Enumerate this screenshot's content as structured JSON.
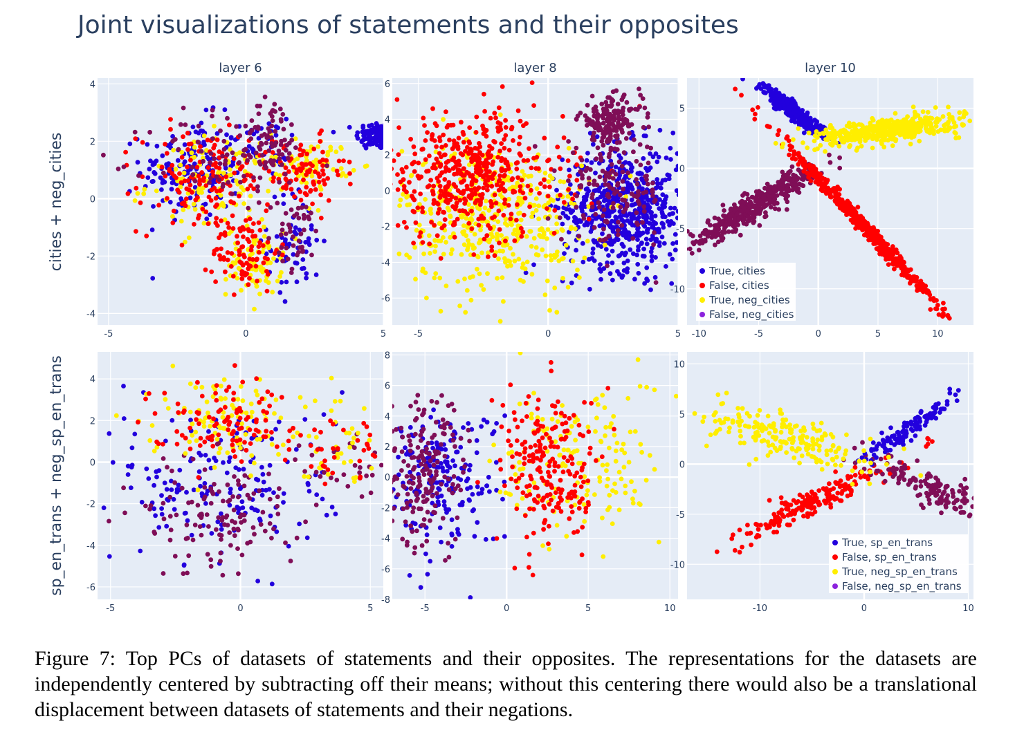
{
  "title": "Joint visualizations of statements and their opposites",
  "caption": "Figure 7: Top PCs of datasets of statements and their opposites. The representations for the datasets are independently centered by subtracting off their means; without this centering there would also be a translational displacement between datasets of statements and their negations.",
  "colors": {
    "plot_bg": "#e5ecf6",
    "grid": "#ffffff",
    "true": "#2200dd",
    "false": "#ff0000",
    "neg_true": "#ffee00",
    "neg_false": "#7f0e57",
    "legend_false_neg": "#8b22dd"
  },
  "chart_data": [
    {
      "type": "scatter",
      "title": "layer 6",
      "ylabel": "cities + neg_cities",
      "xlim": [
        -5.4,
        5
      ],
      "ylim": [
        -4.4,
        4.2
      ],
      "xticks": [
        "-5",
        "0",
        "5"
      ],
      "yticks": [
        "4",
        "2",
        "0",
        "-2",
        "-4"
      ],
      "series": [
        {
          "clusters": [
            [
              4.8,
              2.2,
              0.4,
              0.25,
              0.0,
              120
            ],
            [
              -2.0,
              1.0,
              0.9,
              0.9,
              0.0,
              160
            ],
            [
              1.8,
              -1.5,
              0.5,
              0.9,
              0.0,
              60
            ],
            [
              0.5,
              1.8,
              0.5,
              0.5,
              0.0,
              40
            ]
          ]
        },
        {
          "clusters": [
            [
              -1.5,
              0.6,
              1.2,
              0.9,
              0.0,
              140
            ],
            [
              2.0,
              0.9,
              0.8,
              0.6,
              0.0,
              90
            ],
            [
              0.0,
              -1.8,
              0.6,
              0.7,
              0.0,
              90
            ]
          ]
        },
        {
          "clusters": [
            [
              -1.0,
              0.5,
              1.3,
              0.8,
              0.0,
              120
            ],
            [
              0.3,
              -2.2,
              0.5,
              0.6,
              0.0,
              80
            ],
            [
              2.6,
              1.2,
              0.6,
              0.4,
              0.0,
              60
            ]
          ]
        },
        {
          "clusters": [
            [
              -0.5,
              1.3,
              1.5,
              0.9,
              0.0,
              90
            ],
            [
              1.0,
              2.3,
              0.5,
              0.6,
              0.0,
              50
            ],
            [
              1.9,
              -1.3,
              0.4,
              0.6,
              0.0,
              40
            ]
          ]
        }
      ]
    },
    {
      "type": "scatter",
      "title": "layer 8",
      "xlim": [
        -6,
        5
      ],
      "ylim": [
        -7.5,
        6.3
      ],
      "xticks": [
        "-5",
        "0",
        "5"
      ],
      "yticks": [
        "6",
        "4",
        "2",
        "0",
        "-2",
        "-4",
        "-6"
      ],
      "series": [
        {
          "clusters": [
            [
              3.0,
              -1.0,
              1.2,
              1.7,
              0.0,
              600
            ]
          ]
        },
        {
          "clusters": [
            [
              -3.0,
              0.8,
              1.8,
              1.8,
              0.0,
              500
            ]
          ]
        },
        {
          "clusters": [
            [
              -2.0,
              -1.5,
              1.8,
              2.0,
              0.0,
              450
            ]
          ]
        },
        {
          "clusters": [
            [
              2.4,
              4.0,
              0.6,
              0.6,
              0.0,
              160
            ],
            [
              2.5,
              0.0,
              1.0,
              1.5,
              0.0,
              150
            ]
          ]
        }
      ]
    },
    {
      "type": "scatter",
      "xlim": [
        -11,
        13
      ],
      "ylim": [
        -13,
        7.5
      ],
      "xticks": [
        "-10",
        "-5",
        "0",
        "5",
        "10"
      ],
      "yticks": [
        "5",
        "0",
        "-5",
        "-10"
      ],
      "title": "layer 10",
      "legend": [
        {
          "label": "True,  cities",
          "color": "#2200dd"
        },
        {
          "label": "False, cities",
          "color": "#ff0000"
        },
        {
          "label": "True,  neg_cities",
          "color": "#ffee00"
        },
        {
          "label": "False, neg_cities",
          "color": "#8b22dd"
        }
      ],
      "series": [
        {
          "clusters": [
            [
              -2.0,
              4.7,
              1.2,
              0.35,
              -0.75,
              400
            ]
          ]
        },
        {
          "clusters": [
            [
              3.8,
              -4.8,
              3.5,
              0.35,
              -1.05,
              500
            ]
          ]
        },
        {
          "clusters": [
            [
              5.8,
              3.2,
              3.0,
              0.5,
              0.12,
              450
            ]
          ]
        },
        {
          "clusters": [
            [
              -5.5,
              -3.2,
              2.8,
              0.55,
              0.6,
              450
            ]
          ]
        }
      ]
    },
    {
      "type": "scatter",
      "ylabel": "sp_en_trans + neg_sp_en_trans",
      "xlim": [
        -5.5,
        5.5
      ],
      "ylim": [
        -6.6,
        5.3
      ],
      "xticks": [
        "-5",
        "0",
        "5"
      ],
      "yticks": [
        "4",
        "2",
        "0",
        "-2",
        "-4",
        "-6"
      ],
      "series": [
        {
          "clusters": [
            [
              -0.5,
              -1.0,
              2.2,
              2.0,
              0.0,
              180
            ]
          ]
        },
        {
          "clusters": [
            [
              -0.5,
              2.0,
              1.5,
              0.9,
              0.0,
              110
            ],
            [
              3.8,
              0.7,
              0.8,
              0.9,
              0.0,
              30
            ]
          ]
        },
        {
          "clusters": [
            [
              -0.6,
              2.2,
              1.5,
              1.0,
              0.0,
              110
            ],
            [
              3.8,
              0.5,
              0.8,
              0.9,
              0.0,
              30
            ]
          ]
        },
        {
          "clusters": [
            [
              -0.8,
              -2.5,
              1.5,
              1.5,
              0.0,
              130
            ],
            [
              3.8,
              -0.3,
              0.7,
              0.8,
              0.0,
              30
            ]
          ]
        }
      ]
    },
    {
      "type": "scatter",
      "xlim": [
        -7,
        10.5
      ],
      "ylim": [
        -8,
        8.2
      ],
      "xticks": [
        "-5",
        "0",
        "5",
        "10"
      ],
      "yticks": [
        "8",
        "6",
        "4",
        "2",
        "0",
        "-2",
        "-4",
        "-6",
        "-8"
      ],
      "series": [
        {
          "clusters": [
            [
              -4.0,
              0.0,
              1.8,
              2.3,
              0.0,
              200
            ]
          ]
        },
        {
          "clusters": [
            [
              2.7,
              0.5,
              1.5,
              2.5,
              0.0,
              220
            ]
          ]
        },
        {
          "clusters": [
            [
              4.5,
              1.0,
              2.5,
              2.8,
              0.0,
              160
            ]
          ]
        },
        {
          "clusters": [
            [
              -5.2,
              0.3,
              1.4,
              2.5,
              0.0,
              190
            ]
          ]
        }
      ]
    },
    {
      "type": "scatter",
      "xlim": [
        -17,
        10.5
      ],
      "ylim": [
        -13.5,
        11.2
      ],
      "xticks": [
        "-10",
        "0",
        "10"
      ],
      "yticks": [
        "10",
        "5",
        "0",
        "-5",
        "-10"
      ],
      "legend": [
        {
          "label": "True,  sp_en_trans",
          "color": "#2200dd"
        },
        {
          "label": "False, sp_en_trans",
          "color": "#ff0000"
        },
        {
          "label": "True,  neg_sp_en_trans",
          "color": "#ffee00"
        },
        {
          "label": "False, neg_sp_en_trans",
          "color": "#8b22dd"
        }
      ],
      "series": [
        {
          "clusters": [
            [
              4.5,
              3.5,
              2.3,
              0.5,
              0.7,
              120
            ]
          ]
        },
        {
          "clusters": [
            [
              -5.0,
              -3.8,
              3.5,
              0.7,
              0.53,
              200
            ]
          ]
        },
        {
          "clusters": [
            [
              -7.5,
              2.6,
              4.0,
              1.2,
              -0.3,
              200
            ]
          ]
        },
        {
          "clusters": [
            [
              6.0,
              -2.2,
              3.0,
              0.8,
              -0.42,
              150
            ]
          ]
        }
      ]
    }
  ]
}
